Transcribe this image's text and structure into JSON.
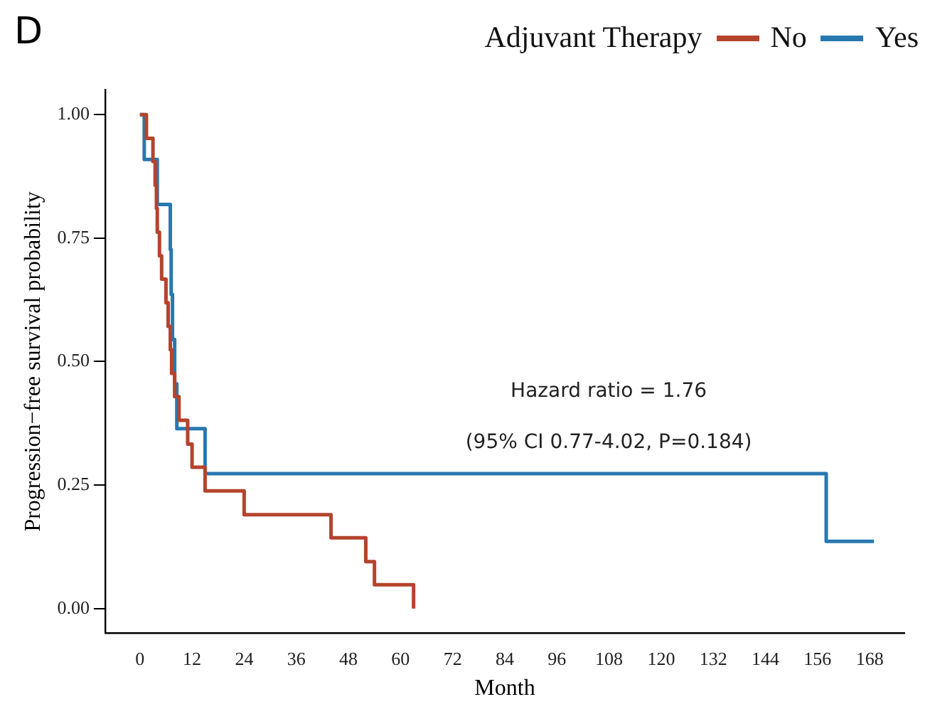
{
  "chart_data": {
    "type": "step",
    "title": "D",
    "xlabel": "Month",
    "ylabel": "Progression−free survival probability",
    "legend_title": "Adjuvant Therapy",
    "legend": "top right",
    "marker": "none",
    "line_style": "solid",
    "grid": false,
    "series": [
      {
        "name": "No",
        "color": "#b5432c",
        "x": [
          0,
          1.5,
          3,
          3.5,
          3.8,
          4,
          4.5,
          5,
          6,
          6.5,
          7,
          7.3,
          8,
          9,
          11,
          12,
          15,
          24,
          44,
          52,
          54,
          63
        ],
        "values": [
          1,
          0.952,
          0.905,
          0.857,
          0.81,
          0.762,
          0.714,
          0.667,
          0.619,
          0.571,
          0.524,
          0.476,
          0.429,
          0.381,
          0.333,
          0.286,
          0.238,
          0.19,
          0.143,
          0.095,
          0.048,
          0
        ]
      },
      {
        "name": "Yes",
        "color": "#2878b0",
        "x": [
          0,
          1,
          4,
          7,
          7.2,
          7.5,
          8,
          8.5,
          15,
          158,
          169
        ],
        "values": [
          1,
          0.909,
          0.818,
          0.727,
          0.636,
          0.545,
          0.455,
          0.364,
          0.273,
          0.136,
          0.136
        ]
      }
    ],
    "xlim": [
      -8,
      176
    ],
    "xticks": [
      0,
      12,
      24,
      36,
      48,
      60,
      72,
      84,
      96,
      108,
      120,
      132,
      144,
      156,
      168
    ],
    "ylim": [
      -0.05,
      1.05
    ],
    "yticks": [
      {
        "value": 0,
        "label": "0.00"
      },
      {
        "value": 0.25,
        "label": "0.25"
      },
      {
        "value": 0.5,
        "label": "0.50"
      },
      {
        "value": 0.75,
        "label": "0.75"
      },
      {
        "value": 1,
        "label": "1.00"
      }
    ],
    "annotations": [
      "Hazard ratio = 1.76",
      "(95% CI 0.77-4.02, P=0.184)"
    ]
  }
}
